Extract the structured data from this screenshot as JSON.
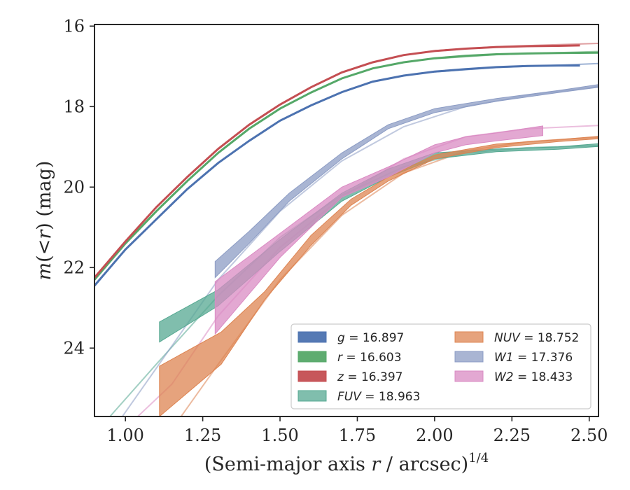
{
  "chart_data": {
    "type": "line",
    "xlabel_main": "(Semi-major axis ",
    "xlabel_var": "r",
    "xlabel_units": " / arcsec)",
    "xlabel_exp": "1/4",
    "ylabel_m": "m",
    "ylabel_paren": "(<",
    "ylabel_r": "r",
    "ylabel_close": ") (mag)",
    "xlim": [
      0.9,
      2.53
    ],
    "ylim": [
      25.7,
      15.96
    ],
    "y_inverted": true,
    "x_ticks": [
      1.0,
      1.25,
      1.5,
      1.75,
      2.0,
      2.25,
      2.5
    ],
    "x_tick_labels": [
      "1.00",
      "1.25",
      "1.50",
      "1.75",
      "2.00",
      "2.25",
      "2.50"
    ],
    "y_ticks": [
      16,
      18,
      20,
      22,
      24
    ],
    "y_tick_labels": [
      "16",
      "18",
      "20",
      "22",
      "24"
    ],
    "legend_position": "lower-right",
    "series": [
      {
        "band": "g",
        "label": "= 16.897",
        "color": "#4c72b0",
        "x": [
          0.9,
          1.0,
          1.1,
          1.2,
          1.3,
          1.4,
          1.5,
          1.6,
          1.7,
          1.8,
          1.9,
          2.0,
          2.1,
          2.2,
          2.3,
          2.4,
          2.47
        ],
        "y": [
          22.45,
          21.55,
          20.8,
          20.05,
          19.4,
          18.85,
          18.35,
          17.97,
          17.64,
          17.38,
          17.23,
          17.13,
          17.07,
          17.02,
          16.99,
          16.98,
          16.98
        ],
        "model_x": [
          2.0,
          2.2,
          2.4,
          2.53
        ],
        "model_y": [
          17.14,
          17.03,
          16.97,
          16.93
        ]
      },
      {
        "band": "r",
        "label": "= 16.603",
        "color": "#55a868",
        "x": [
          0.9,
          1.0,
          1.1,
          1.2,
          1.3,
          1.4,
          1.5,
          1.6,
          1.7,
          1.8,
          1.9,
          2.0,
          2.1,
          2.2,
          2.3,
          2.4,
          2.53
        ],
        "y": [
          22.3,
          21.4,
          20.6,
          19.85,
          19.15,
          18.55,
          18.05,
          17.65,
          17.3,
          17.05,
          16.9,
          16.8,
          16.74,
          16.7,
          16.68,
          16.67,
          16.66
        ],
        "model_x": [
          2.0,
          2.2,
          2.4,
          2.53
        ],
        "model_y": [
          16.81,
          16.71,
          16.66,
          16.63
        ]
      },
      {
        "band": "z",
        "label": "= 16.397",
        "color": "#c44e52",
        "x": [
          0.9,
          1.0,
          1.1,
          1.2,
          1.3,
          1.4,
          1.5,
          1.6,
          1.7,
          1.8,
          1.9,
          2.0,
          2.1,
          2.2,
          2.3,
          2.4,
          2.47
        ],
        "y": [
          22.25,
          21.35,
          20.5,
          19.75,
          19.05,
          18.45,
          17.95,
          17.52,
          17.15,
          16.9,
          16.72,
          16.62,
          16.56,
          16.52,
          16.5,
          16.49,
          16.48
        ],
        "model_x": [
          2.0,
          2.2,
          2.4,
          2.53
        ],
        "model_y": [
          16.61,
          16.51,
          16.46,
          16.43
        ]
      },
      {
        "band": "FUV",
        "label": "= 18.963",
        "color": "#55a891",
        "band_x": [
          1.11,
          1.3,
          1.5,
          1.7,
          1.85,
          2.0,
          2.2,
          2.4,
          2.53
        ],
        "band_top": [
          23.35,
          22.55,
          21.3,
          20.15,
          19.55,
          19.15,
          19.05,
          19.0,
          18.92
        ],
        "band_bottom": [
          23.85,
          22.95,
          21.6,
          20.35,
          19.75,
          19.3,
          19.12,
          19.06,
          18.99
        ],
        "model_x": [
          0.95,
          1.1,
          1.3,
          1.5,
          1.7,
          1.9,
          2.1,
          2.3,
          2.53
        ],
        "model_y": [
          25.7,
          24.4,
          22.7,
          21.25,
          20.2,
          19.5,
          19.15,
          19.02,
          18.97
        ]
      },
      {
        "band": "NUV",
        "label": "= 18.752",
        "color": "#dd8452",
        "band_x": [
          1.11,
          1.31,
          1.45,
          1.6,
          1.73,
          1.85,
          2.0,
          2.2,
          2.4,
          2.53
        ],
        "band_top": [
          24.45,
          23.6,
          22.6,
          21.2,
          20.3,
          19.75,
          19.2,
          18.93,
          18.82,
          18.74
        ],
        "band_bottom": [
          25.7,
          24.4,
          22.8,
          21.45,
          20.45,
          19.85,
          19.3,
          19.02,
          18.87,
          18.8
        ],
        "model_x": [
          1.18,
          1.3,
          1.5,
          1.7,
          1.9,
          2.1,
          2.3,
          2.53
        ],
        "model_y": [
          25.7,
          24.4,
          22.3,
          20.7,
          19.65,
          19.1,
          18.87,
          18.76
        ]
      },
      {
        "band": "W1",
        "label": "= 17.376",
        "color": "#8c9cc4",
        "band_x": [
          1.29,
          1.4,
          1.53,
          1.7,
          1.85,
          2.0,
          2.2,
          2.4,
          2.53
        ],
        "band_top": [
          21.85,
          21.1,
          20.15,
          19.15,
          18.45,
          18.05,
          17.8,
          17.6,
          17.45
        ],
        "band_bottom": [
          22.25,
          21.4,
          20.35,
          19.3,
          18.55,
          18.15,
          17.87,
          17.65,
          17.52
        ],
        "model_x": [
          0.99,
          1.1,
          1.3,
          1.5,
          1.7,
          1.9,
          2.1,
          2.3,
          2.53
        ],
        "model_y": [
          25.7,
          24.5,
          22.3,
          20.6,
          19.35,
          18.5,
          18.0,
          17.72,
          17.5
        ]
      },
      {
        "band": "W2",
        "label": "= 18.433",
        "color": "#da8bc3",
        "band_x": [
          1.29,
          1.5,
          1.7,
          1.85,
          2.0,
          2.1,
          2.2,
          2.35
        ],
        "band_top": [
          22.35,
          21.15,
          20.0,
          19.5,
          18.95,
          18.75,
          18.65,
          18.48
        ],
        "band_bottom": [
          23.65,
          21.75,
          20.25,
          19.75,
          19.15,
          18.95,
          18.85,
          18.72
        ],
        "model_x": [
          1.04,
          1.15,
          1.3,
          1.5,
          1.7,
          1.9,
          2.1,
          2.3,
          2.53
        ],
        "model_y": [
          25.7,
          24.9,
          23.2,
          21.5,
          20.25,
          19.3,
          18.75,
          18.55,
          18.47
        ]
      }
    ]
  }
}
